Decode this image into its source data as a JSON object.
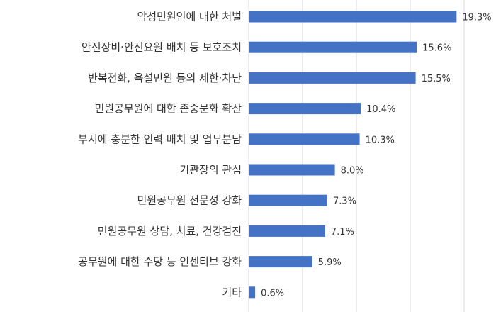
{
  "chart_data": {
    "type": "bar",
    "orientation": "horizontal",
    "categories": [
      "악성민원인에 대한 처벌",
      "안전장비·안전요원 배치 등 보호조치",
      "반복전화, 욕설민원 등의 제한·차단",
      "민원공무원에 대한 존중문화 확산",
      "부서에 충분한 인력 배치 및 업무분담",
      "기관장의 관심",
      "민원공무원 전문성 강화",
      "민원공무원 상담, 치료, 건강검진",
      "공무원에 대한 수당 등 인센티브 강화",
      "기타"
    ],
    "values": [
      19.3,
      15.6,
      15.5,
      10.4,
      10.3,
      8.0,
      7.3,
      7.1,
      5.9,
      0.6
    ],
    "value_labels": [
      "19.3%",
      "15.6%",
      "15.5%",
      "10.4%",
      "10.3%",
      "8.0%",
      "7.3%",
      "7.1%",
      "5.9%",
      "0.6%"
    ],
    "xlim": [
      0,
      25
    ],
    "grid": true,
    "bar_color": "#4472c4"
  }
}
